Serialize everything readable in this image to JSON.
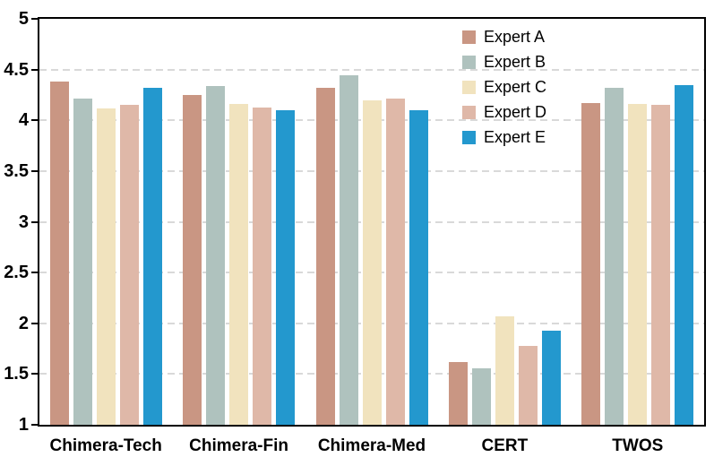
{
  "chart_data": {
    "type": "bar",
    "title": "",
    "xlabel": "",
    "ylabel": "",
    "categories": [
      "Chimera-Tech",
      "Chimera-Fin",
      "Chimera-Med",
      "CERT",
      "TWOS"
    ],
    "series": [
      {
        "name": "Expert A",
        "color": "#C99683",
        "values": [
          4.38,
          4.25,
          4.32,
          1.62,
          4.17
        ]
      },
      {
        "name": "Expert B",
        "color": "#AFC2BE",
        "values": [
          4.21,
          4.34,
          4.44,
          1.56,
          4.32
        ]
      },
      {
        "name": "Expert C",
        "color": "#F1E3BE",
        "values": [
          4.12,
          4.16,
          4.2,
          2.07,
          4.16
        ]
      },
      {
        "name": "Expert D",
        "color": "#DFB8A8",
        "values": [
          4.15,
          4.13,
          4.21,
          1.78,
          4.15
        ]
      },
      {
        "name": "Expert E",
        "color": "#2398CE",
        "values": [
          4.32,
          4.1,
          4.1,
          1.93,
          4.35
        ]
      }
    ],
    "ylim": [
      1,
      5
    ],
    "ytick_step": 0.5,
    "ytick_labels": [
      "1",
      "1.5",
      "2",
      "2.5",
      "3",
      "3.5",
      "4",
      "4.5",
      "5"
    ],
    "grid": "horizontal-dashed",
    "grid_color": "#D9D9D9",
    "axis_color": "#000000",
    "background": "#FFFFFF",
    "legend_position": "top-center-inside",
    "legend_border": "none"
  }
}
